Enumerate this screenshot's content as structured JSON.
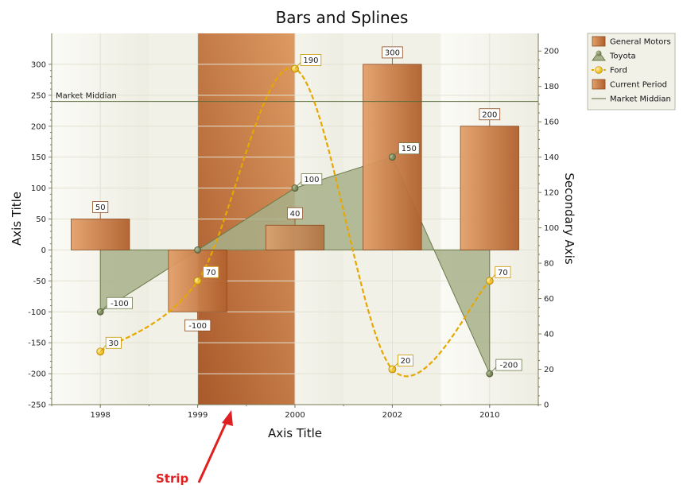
{
  "chart_data": {
    "type": "bar",
    "title": "Bars and Splines",
    "xlabel": "Axis Title",
    "ylabel": "Axis Title",
    "y2label": "Secondary Axis",
    "categories": [
      "1998",
      "1999",
      "2000",
      "2002",
      "2010"
    ],
    "ylim": [
      -250,
      350
    ],
    "y_ticks": [
      -250,
      -200,
      -150,
      -100,
      -50,
      0,
      50,
      100,
      150,
      200,
      250,
      300
    ],
    "y2lim": [
      0,
      210
    ],
    "y2_ticks": [
      0,
      20,
      40,
      60,
      80,
      100,
      120,
      140,
      160,
      180,
      200
    ],
    "grid": true,
    "legend_position": "top-right",
    "series": [
      {
        "name": "General Motors",
        "type": "bar",
        "axis": "primary",
        "values": [
          50,
          -100,
          40,
          300,
          200
        ],
        "labels": [
          "50",
          "-100",
          "40",
          "300",
          "200"
        ]
      },
      {
        "name": "Toyota",
        "type": "area",
        "axis": "primary",
        "values": [
          -100,
          0,
          100,
          150,
          -200
        ],
        "labels": [
          "-100",
          "",
          "100",
          "150",
          "-200"
        ]
      },
      {
        "name": "Ford",
        "type": "spline",
        "axis": "secondary",
        "values": [
          30,
          70,
          190,
          20,
          70
        ],
        "labels": [
          "30",
          "70",
          "190",
          "20",
          "70"
        ]
      }
    ],
    "strip": {
      "name": "Current Period",
      "from_category": "1999",
      "to_category": "2000"
    },
    "constant_line": {
      "name": "Market Middian",
      "value": 240,
      "label": "Market Middian"
    },
    "annotation": {
      "text": "Strip"
    },
    "colors": {
      "bar_light": "#e3a06a",
      "bar_dark": "#b0602c",
      "toyota": "#6b7a4b",
      "toyota_fill": "#a7b08a",
      "ford": "#e6a800",
      "plot_bg": "#f2f1e8",
      "constant_line": "#5a6b3a",
      "annotation": "#e02020"
    }
  }
}
